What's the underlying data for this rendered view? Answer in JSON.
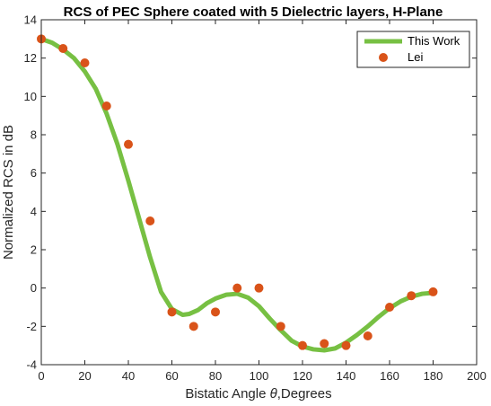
{
  "chart_data": {
    "type": "line",
    "title": "RCS of PEC Sphere coated with 5 Dielectric layers, H-Plane",
    "xlabel_prefix": "Bistatic Angle ",
    "xlabel_symbol": "θ",
    "xlabel_suffix": ",Degrees",
    "ylabel": "Normalized RCS in dB",
    "xlim": [
      0,
      200
    ],
    "ylim": [
      -4,
      14
    ],
    "xticks": [
      0,
      20,
      40,
      60,
      80,
      100,
      120,
      140,
      160,
      180,
      200
    ],
    "yticks": [
      -4,
      -2,
      0,
      2,
      4,
      6,
      8,
      10,
      12,
      14
    ],
    "grid": false,
    "legend_position": "top-right",
    "series": [
      {
        "name": "This Work",
        "style": "line",
        "color": "#77c043",
        "x": [
          0,
          5,
          10,
          15,
          20,
          25,
          30,
          35,
          40,
          45,
          50,
          55,
          60,
          65,
          68,
          72,
          76,
          80,
          85,
          90,
          95,
          100,
          105,
          110,
          115,
          120,
          125,
          130,
          135,
          140,
          145,
          150,
          155,
          160,
          165,
          170,
          175,
          180
        ],
        "y": [
          13.0,
          12.8,
          12.45,
          12.0,
          11.3,
          10.4,
          9.1,
          7.5,
          5.6,
          3.6,
          1.6,
          -0.2,
          -1.1,
          -1.4,
          -1.35,
          -1.15,
          -0.8,
          -0.55,
          -0.35,
          -0.3,
          -0.5,
          -0.95,
          -1.6,
          -2.2,
          -2.75,
          -3.05,
          -3.2,
          -3.25,
          -3.15,
          -2.85,
          -2.45,
          -2.0,
          -1.5,
          -1.05,
          -0.7,
          -0.45,
          -0.3,
          -0.25
        ]
      },
      {
        "name": "Lei",
        "style": "marker",
        "color": "#d95319",
        "x": [
          0,
          10,
          20,
          30,
          40,
          50,
          60,
          70,
          80,
          90,
          100,
          110,
          120,
          130,
          140,
          150,
          160,
          170,
          180
        ],
        "y": [
          13.0,
          12.5,
          11.75,
          9.5,
          7.5,
          3.5,
          -1.25,
          -2.0,
          -1.25,
          0.0,
          0.0,
          -2.0,
          -3.0,
          -2.9,
          -3.0,
          -2.5,
          -1.0,
          -0.4,
          -0.2
        ]
      }
    ]
  }
}
